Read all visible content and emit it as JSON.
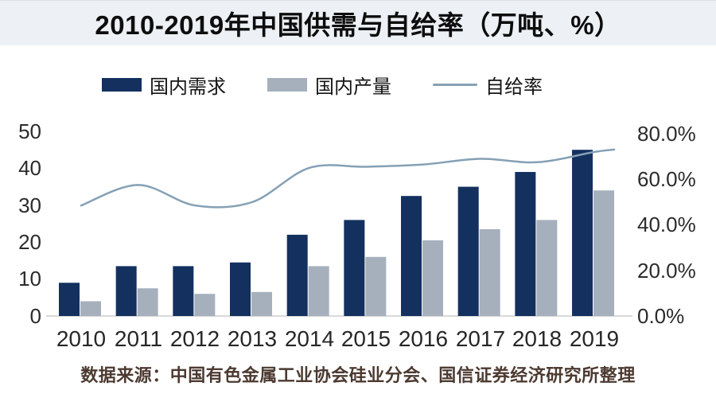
{
  "title": "2010-2019年中国供需与自给率（万吨、%）",
  "legend": {
    "demand": "国内需求",
    "production": "国内产量",
    "rate": "自给率"
  },
  "source_note": "数据来源：中国有色金属工业协会硅业分会、国信证券经济研究所整理",
  "colors": {
    "demand_bar": "#13305f",
    "production_bar": "#a6b0bd",
    "rate_line": "#85a0b5",
    "title_bg": "#edf0f4",
    "axis_line": "#d9d9d9",
    "source_text": "#4c3a31"
  },
  "chart_data": {
    "type": "bar",
    "title": "2010-2019年中国供需与自给率（万吨、%）",
    "categories": [
      "2010",
      "2011",
      "2012",
      "2013",
      "2014",
      "2015",
      "2016",
      "2017",
      "2018",
      "2019"
    ],
    "series": [
      {
        "name": "国内需求",
        "kind": "bar",
        "axis": "left",
        "color": "#13305f",
        "values": [
          9,
          13.5,
          13.5,
          14.5,
          22,
          26,
          32.5,
          35,
          39,
          45
        ]
      },
      {
        "name": "国内产量",
        "kind": "bar",
        "axis": "left",
        "color": "#a6b0bd",
        "values": [
          4,
          7.5,
          6,
          6.5,
          13.5,
          16,
          20.5,
          23.5,
          26,
          34
        ]
      },
      {
        "name": "自给率",
        "kind": "line",
        "axis": "right",
        "color": "#85a0b5",
        "values": [
          48.5,
          57.5,
          48.5,
          50,
          65,
          65.5,
          66.5,
          69,
          67.5,
          72
        ]
      }
    ],
    "left_axis": {
      "min": 0,
      "max": 50,
      "ticks": [
        "50",
        "40",
        "30",
        "20",
        "10",
        "0"
      ]
    },
    "right_axis": {
      "min": 0,
      "max": 80,
      "ticks": [
        "80.0%",
        "60.0%",
        "40.0%",
        "20.0%",
        "0.0%"
      ]
    },
    "grid": false,
    "legend_position": "top"
  }
}
